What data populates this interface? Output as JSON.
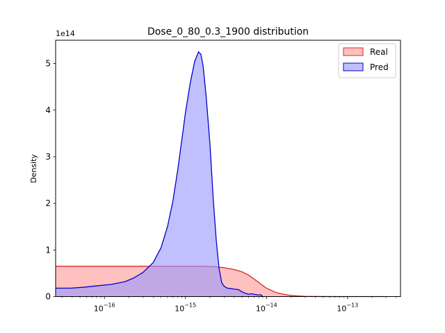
{
  "chart_data": {
    "type": "area",
    "title": "Dose_0_80_0.3_1900 distribution",
    "xlabel": "",
    "ylabel": "Density",
    "y_offset_label": "1e14",
    "x_scale": "log",
    "xlim": [
      2.5e-17,
      4.5e-13
    ],
    "ylim": [
      0,
      550000000000000.0
    ],
    "x_tick_values": [
      1e-16,
      1e-15,
      1e-14,
      1e-13
    ],
    "x_tick_labels": [
      [
        "10",
        "−16"
      ],
      [
        "10",
        "−15"
      ],
      [
        "10",
        "−14"
      ],
      [
        "10",
        "−13"
      ]
    ],
    "y_tick_values": [
      0,
      100000000000000.0,
      200000000000000.0,
      300000000000000.0,
      400000000000000.0,
      500000000000000.0
    ],
    "y_tick_labels": [
      "0",
      "1",
      "2",
      "3",
      "4",
      "5"
    ],
    "grid": false,
    "legend_position": "top-right",
    "series": [
      {
        "name": "Real",
        "stroke": "#d62728",
        "fill": "#ff9999",
        "x": [
          2.5e-17,
          1e-16,
          5e-16,
          1.5e-15,
          2.2e-15,
          3e-15,
          4e-15,
          5e-15,
          6e-15,
          7e-15,
          8.5e-15,
          1e-14,
          1.3e-14,
          1.6e-14,
          2e-14,
          2.5e-14,
          3e-14,
          5e-14,
          1e-13,
          3e-13
        ],
        "y": [
          65000000000000.0,
          65000000000000.0,
          65000000000000.0,
          65000000000000.0,
          64500000000000.0,
          62000000000000.0,
          58000000000000.0,
          53000000000000.0,
          46000000000000.0,
          38000000000000.0,
          27000000000000.0,
          18000000000000.0,
          9000000000000.0,
          5000000000000.0,
          2500000000000.0,
          1200000000000.0,
          500000000000.0,
          100000000000.0,
          20000000000.0,
          0
        ]
      },
      {
        "name": "Pred",
        "stroke": "#0000cc",
        "fill": "#9999ff",
        "x": [
          2.5e-17,
          3.8e-17,
          5.5e-17,
          8e-17,
          1.2e-16,
          1.8e-16,
          2.3e-16,
          3e-16,
          4e-16,
          5e-16,
          6e-16,
          7e-16,
          8e-16,
          9e-16,
          1e-15,
          1.15e-15,
          1.3e-15,
          1.45e-15,
          1.55e-15,
          1.65e-15,
          1.8e-15,
          2e-15,
          2.2e-15,
          2.4e-15,
          2.6e-15,
          2.8e-15,
          3e-15,
          3.3e-15,
          3.7e-15,
          4e-15,
          4.5e-15,
          5e-15,
          5.5e-15,
          6e-15,
          6.5e-15,
          7e-15,
          7.5e-15,
          8e-15,
          8.5e-15,
          9e-15
        ],
        "y": [
          18000000000000.0,
          18000000000000.0,
          20000000000000.0,
          23000000000000.0,
          26000000000000.0,
          32000000000000.0,
          40000000000000.0,
          52000000000000.0,
          73000000000000.0,
          105000000000000.0,
          150000000000000.0,
          205000000000000.0,
          270000000000000.0,
          335000000000000.0,
          395000000000000.0,
          460000000000000.0,
          505000000000000.0,
          525000000000000.0,
          520000000000000.0,
          495000000000000.0,
          430000000000000.0,
          330000000000000.0,
          210000000000000.0,
          120000000000000.0,
          60000000000000.0,
          30000000000000.0,
          22000000000000.0,
          18000000000000.0,
          17000000000000.0,
          16000000000000.0,
          15000000000000.0,
          10000000000000.0,
          7000000000000.0,
          5000000000000.0,
          6000000000000.0,
          5000000000000.0,
          4000000000000.0,
          3500000000000.0,
          4000000000000.0,
          0
        ]
      }
    ]
  }
}
